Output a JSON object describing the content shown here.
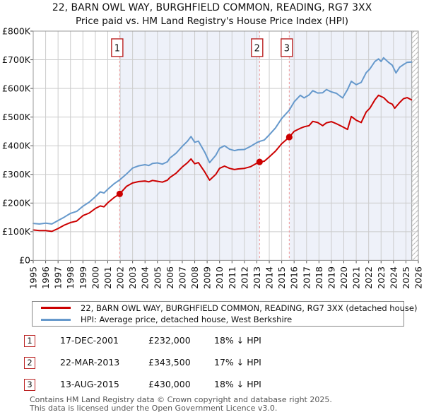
{
  "title": "22, BARN OWL WAY, BURGHFIELD COMMON, READING, RG7 3XX",
  "subtitle": "Price paid vs. HM Land Registry's House Price Index (HPI)",
  "chart_data": {
    "type": "line",
    "x_axis": {
      "min": 1995,
      "max": 2026,
      "ticks": [
        1995,
        1996,
        1997,
        1998,
        1999,
        2000,
        2001,
        2002,
        2003,
        2004,
        2005,
        2006,
        2007,
        2008,
        2009,
        2010,
        2011,
        2012,
        2013,
        2014,
        2015,
        2016,
        2017,
        2018,
        2019,
        2020,
        2021,
        2022,
        2023,
        2024,
        2025,
        2026
      ]
    },
    "y_axis": {
      "min": 0,
      "max": 800,
      "unit": "GBP thousands",
      "ticks": [
        0,
        100,
        200,
        300,
        400,
        500,
        600,
        700,
        800
      ],
      "tick_labels": [
        "£0",
        "£100K",
        "£200K",
        "£300K",
        "£400K",
        "£500K",
        "£600K",
        "£700K",
        "£800K"
      ]
    },
    "grid": true,
    "legend_position": "bottom",
    "shaded_ownership_bands": [
      {
        "from": 2001.96,
        "to": 2013.22
      },
      {
        "from": 2015.61,
        "to": 2025.47
      }
    ],
    "hatch_future_start": 2025.47,
    "colors": {
      "property_line": "#cc0000",
      "hpi_line": "#6699cc",
      "band_fill": "#eef1f9",
      "grid_line": "#cccccc",
      "frame": "#999999",
      "sale_dashed_line": "#ee9999",
      "marker_border": "#bb2222",
      "axis_text": "#111111",
      "hatch_line": "#bbbbbb"
    },
    "series": [
      {
        "name": "22, BARN OWL WAY, BURGHFIELD COMMON, READING, RG7 3XX (detached house)",
        "color": "#cc0000",
        "unit": "GBP thousands",
        "points": [
          [
            1995.0,
            106
          ],
          [
            1995.5,
            104
          ],
          [
            1996.0,
            104
          ],
          [
            1996.5,
            101
          ],
          [
            1997.0,
            111
          ],
          [
            1997.5,
            123
          ],
          [
            1998.0,
            132
          ],
          [
            1998.5,
            137
          ],
          [
            1999.0,
            156
          ],
          [
            1999.5,
            165
          ],
          [
            2000.0,
            181
          ],
          [
            2000.4,
            190
          ],
          [
            2000.7,
            187
          ],
          [
            2001.0,
            201
          ],
          [
            2001.5,
            219
          ],
          [
            2001.96,
            232
          ],
          [
            2002.5,
            258
          ],
          [
            2003.0,
            270
          ],
          [
            2003.5,
            275
          ],
          [
            2004.0,
            277
          ],
          [
            2004.3,
            274
          ],
          [
            2004.6,
            279
          ],
          [
            2005.0,
            276
          ],
          [
            2005.4,
            273
          ],
          [
            2005.8,
            280
          ],
          [
            2006.0,
            289
          ],
          [
            2006.5,
            304
          ],
          [
            2007.0,
            326
          ],
          [
            2007.4,
            340
          ],
          [
            2007.7,
            354
          ],
          [
            2008.0,
            337
          ],
          [
            2008.3,
            341
          ],
          [
            2008.8,
            309
          ],
          [
            2009.2,
            280
          ],
          [
            2009.7,
            300
          ],
          [
            2010.0,
            321
          ],
          [
            2010.4,
            329
          ],
          [
            2010.8,
            321
          ],
          [
            2011.2,
            317
          ],
          [
            2011.5,
            319
          ],
          [
            2012.0,
            321
          ],
          [
            2012.5,
            327
          ],
          [
            2013.0,
            339
          ],
          [
            2013.22,
            343.5
          ],
          [
            2013.6,
            346
          ],
          [
            2014.0,
            361
          ],
          [
            2014.5,
            381
          ],
          [
            2015.0,
            407
          ],
          [
            2015.61,
            430
          ],
          [
            2016.0,
            450
          ],
          [
            2016.5,
            461
          ],
          [
            2016.8,
            466
          ],
          [
            2017.2,
            470
          ],
          [
            2017.5,
            485
          ],
          [
            2017.9,
            481
          ],
          [
            2018.3,
            470
          ],
          [
            2018.6,
            480
          ],
          [
            2019.0,
            484
          ],
          [
            2019.4,
            477
          ],
          [
            2019.9,
            466
          ],
          [
            2020.3,
            457
          ],
          [
            2020.6,
            502
          ],
          [
            2021.0,
            489
          ],
          [
            2021.4,
            481
          ],
          [
            2021.8,
            518
          ],
          [
            2022.1,
            531
          ],
          [
            2022.5,
            560
          ],
          [
            2022.8,
            576
          ],
          [
            2023.0,
            572
          ],
          [
            2023.2,
            568
          ],
          [
            2023.6,
            551
          ],
          [
            2023.9,
            545
          ],
          [
            2024.1,
            531
          ],
          [
            2024.5,
            551
          ],
          [
            2024.8,
            564
          ],
          [
            2025.1,
            568
          ],
          [
            2025.45,
            560
          ]
        ]
      },
      {
        "name": "HPI: Average price, detached house, West Berkshire",
        "color": "#6699cc",
        "unit": "GBP thousands",
        "points": [
          [
            1995.0,
            129
          ],
          [
            1995.5,
            127
          ],
          [
            1996.0,
            130
          ],
          [
            1996.5,
            127
          ],
          [
            1997.0,
            139
          ],
          [
            1997.5,
            151
          ],
          [
            1998.0,
            164
          ],
          [
            1998.5,
            171
          ],
          [
            1999.0,
            189
          ],
          [
            1999.5,
            203
          ],
          [
            2000.0,
            222
          ],
          [
            2000.4,
            239
          ],
          [
            2000.7,
            235
          ],
          [
            2001.0,
            248
          ],
          [
            2001.5,
            267
          ],
          [
            2001.96,
            281
          ],
          [
            2002.5,
            301
          ],
          [
            2003.0,
            322
          ],
          [
            2003.5,
            330
          ],
          [
            2004.0,
            334
          ],
          [
            2004.3,
            331
          ],
          [
            2004.6,
            338
          ],
          [
            2005.0,
            340
          ],
          [
            2005.4,
            336
          ],
          [
            2005.8,
            344
          ],
          [
            2006.0,
            357
          ],
          [
            2006.5,
            374
          ],
          [
            2007.0,
            398
          ],
          [
            2007.4,
            415
          ],
          [
            2007.7,
            432
          ],
          [
            2008.0,
            412
          ],
          [
            2008.3,
            416
          ],
          [
            2008.8,
            378
          ],
          [
            2009.2,
            341
          ],
          [
            2009.7,
            367
          ],
          [
            2010.0,
            391
          ],
          [
            2010.4,
            400
          ],
          [
            2010.8,
            388
          ],
          [
            2011.2,
            383
          ],
          [
            2011.5,
            386
          ],
          [
            2012.0,
            387
          ],
          [
            2012.5,
            398
          ],
          [
            2013.0,
            411
          ],
          [
            2013.22,
            415
          ],
          [
            2013.6,
            420
          ],
          [
            2014.0,
            438
          ],
          [
            2014.5,
            462
          ],
          [
            2015.0,
            495
          ],
          [
            2015.61,
            524
          ],
          [
            2016.0,
            553
          ],
          [
            2016.5,
            576
          ],
          [
            2016.8,
            567
          ],
          [
            2017.2,
            577
          ],
          [
            2017.5,
            592
          ],
          [
            2017.9,
            584
          ],
          [
            2018.3,
            585
          ],
          [
            2018.6,
            596
          ],
          [
            2019.0,
            588
          ],
          [
            2019.4,
            583
          ],
          [
            2019.9,
            567
          ],
          [
            2020.3,
            596
          ],
          [
            2020.6,
            625
          ],
          [
            2021.0,
            613
          ],
          [
            2021.4,
            621
          ],
          [
            2021.8,
            655
          ],
          [
            2022.1,
            668
          ],
          [
            2022.5,
            694
          ],
          [
            2022.8,
            703
          ],
          [
            2023.0,
            694
          ],
          [
            2023.2,
            707
          ],
          [
            2023.6,
            691
          ],
          [
            2023.9,
            681
          ],
          [
            2024.2,
            654
          ],
          [
            2024.5,
            674
          ],
          [
            2024.8,
            683
          ],
          [
            2025.1,
            691
          ],
          [
            2025.45,
            692
          ]
        ]
      }
    ],
    "sale_markers": [
      {
        "label": "1",
        "x": 2001.96,
        "value": 232,
        "price": "£232,000",
        "date": "17-DEC-2001"
      },
      {
        "label": "2",
        "x": 2013.22,
        "value": 343.5,
        "price": "£343,500",
        "date": "22-MAR-2013"
      },
      {
        "label": "3",
        "x": 2015.61,
        "value": 430,
        "price": "£430,000",
        "date": "13-AUG-2015"
      }
    ]
  },
  "legend": {
    "items": [
      {
        "label": "22, BARN OWL WAY, BURGHFIELD COMMON, READING, RG7 3XX (detached house)",
        "color": "#cc0000"
      },
      {
        "label": "HPI: Average price, detached house, West Berkshire",
        "color": "#6699cc"
      }
    ]
  },
  "sales_table": {
    "rows": [
      {
        "num": "1",
        "date": "17-DEC-2001",
        "price": "£232,000",
        "vs_hpi": "18% ↓ HPI"
      },
      {
        "num": "2",
        "date": "22-MAR-2013",
        "price": "£343,500",
        "vs_hpi": "17% ↓ HPI"
      },
      {
        "num": "3",
        "date": "13-AUG-2015",
        "price": "£430,000",
        "vs_hpi": "18% ↓ HPI"
      }
    ]
  },
  "footer": {
    "line1": "Contains HM Land Registry data © Crown copyright and database right 2025.",
    "line2": "This data is licensed under the Open Government Licence v3.0."
  }
}
